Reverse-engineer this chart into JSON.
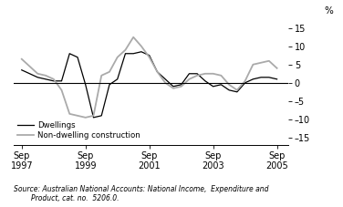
{
  "title": "",
  "ylabel_pct": "%",
  "ylim": [
    -17,
    17
  ],
  "yticks": [
    -15,
    -10,
    -5,
    0,
    5,
    10,
    15
  ],
  "xtick_labels": [
    "Sep\n1997",
    "Sep\n1999",
    "Sep\n2001",
    "Sep\n2003",
    "Sep\n2005"
  ],
  "xtick_positions": [
    1997.75,
    1999.75,
    2001.75,
    2003.75,
    2005.75
  ],
  "xlim": [
    1997.5,
    2006.1
  ],
  "dwellings_color": "#000000",
  "nondwelling_color": "#aaaaaa",
  "background_color": "#ffffff",
  "legend_labels": [
    "Dwellings",
    "Non-dwelling construction"
  ],
  "source_text": "Source: Australian National Accounts: National Income,  Expenditure and\n        Product, cat. no.  5206.0.",
  "dwellings_x": [
    1997.75,
    1998.0,
    1998.25,
    1998.5,
    1998.75,
    1999.0,
    1999.25,
    1999.5,
    1999.75,
    2000.0,
    2000.25,
    2000.5,
    2000.75,
    2001.0,
    2001.25,
    2001.5,
    2001.75,
    2002.0,
    2002.25,
    2002.5,
    2002.75,
    2003.0,
    2003.25,
    2003.5,
    2003.75,
    2004.0,
    2004.25,
    2004.5,
    2004.75,
    2005.0,
    2005.25,
    2005.5,
    2005.75
  ],
  "dwellings_y": [
    3.5,
    2.5,
    1.5,
    1.0,
    0.5,
    0.5,
    8.0,
    7.0,
    -0.5,
    -9.5,
    -9.0,
    -0.5,
    1.0,
    8.0,
    8.0,
    8.5,
    7.5,
    3.0,
    1.0,
    -1.0,
    -0.5,
    2.5,
    2.5,
    0.5,
    -1.0,
    -0.5,
    -2.0,
    -2.5,
    0.0,
    1.0,
    1.5,
    1.5,
    1.0
  ],
  "nondwelling_x": [
    1997.75,
    1998.0,
    1998.25,
    1998.5,
    1998.75,
    1999.0,
    1999.25,
    1999.5,
    1999.75,
    2000.0,
    2000.25,
    2000.5,
    2000.75,
    2001.0,
    2001.25,
    2001.5,
    2001.75,
    2002.0,
    2002.25,
    2002.5,
    2002.75,
    2003.0,
    2003.25,
    2003.5,
    2003.75,
    2004.0,
    2004.25,
    2004.5,
    2004.75,
    2005.0,
    2005.25,
    2005.5,
    2005.75
  ],
  "nondwelling_y": [
    6.5,
    4.5,
    2.5,
    2.0,
    1.0,
    -2.0,
    -8.5,
    -9.0,
    -9.5,
    -9.0,
    2.0,
    3.0,
    7.0,
    9.0,
    12.5,
    10.0,
    7.0,
    3.0,
    0.0,
    -1.5,
    -1.0,
    1.0,
    2.0,
    2.5,
    2.5,
    2.0,
    -0.5,
    -2.0,
    0.5,
    5.0,
    5.5,
    6.0,
    4.0
  ]
}
